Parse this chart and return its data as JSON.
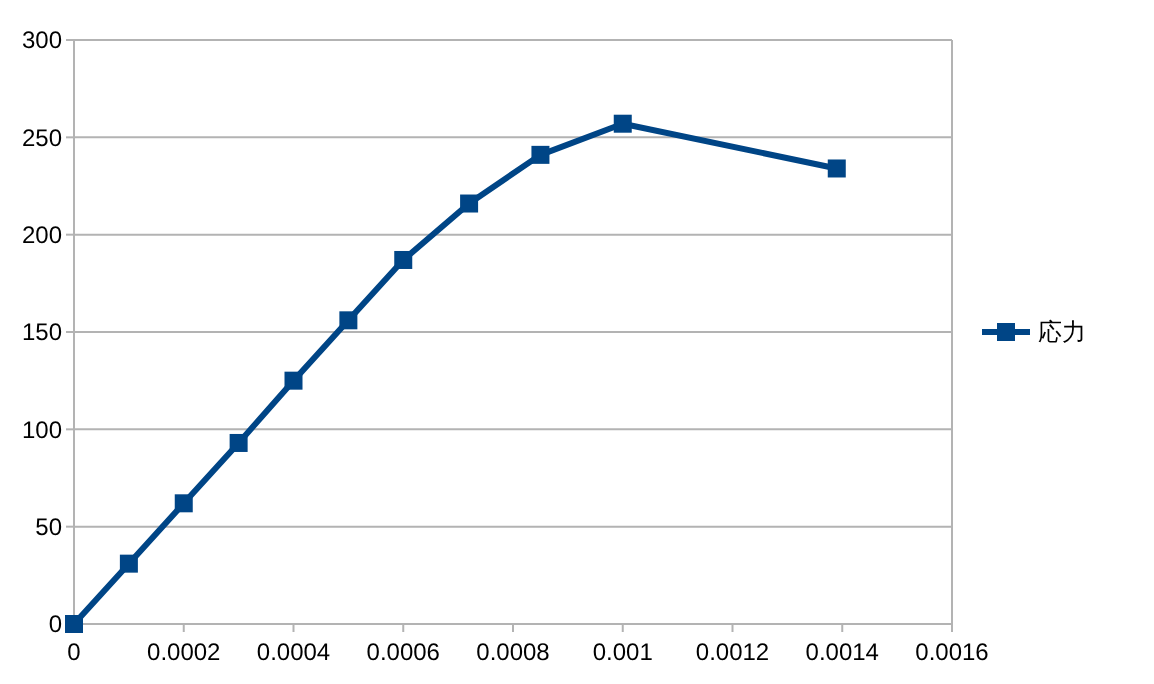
{
  "chart_data": {
    "type": "line",
    "x": [
      0,
      0.0001,
      0.0002,
      0.0003,
      0.0004,
      0.0005,
      0.0006,
      0.00072,
      0.00085,
      0.001,
      0.00139
    ],
    "series": [
      {
        "name": "応力",
        "color": "#004586",
        "values": [
          0,
          31,
          62,
          93,
          125,
          156,
          187,
          216,
          241,
          257,
          234
        ]
      }
    ],
    "xlim": [
      0,
      0.0016
    ],
    "xticks": [
      0,
      0.0002,
      0.0004,
      0.0006,
      0.0008,
      0.001,
      0.0012,
      0.0014,
      0.0016
    ],
    "ylim": [
      0,
      300
    ],
    "yticks": [
      0,
      50,
      100,
      150,
      200,
      250,
      300
    ],
    "grid": "y",
    "legend": "right",
    "marker": "square",
    "line_style": "solid"
  }
}
